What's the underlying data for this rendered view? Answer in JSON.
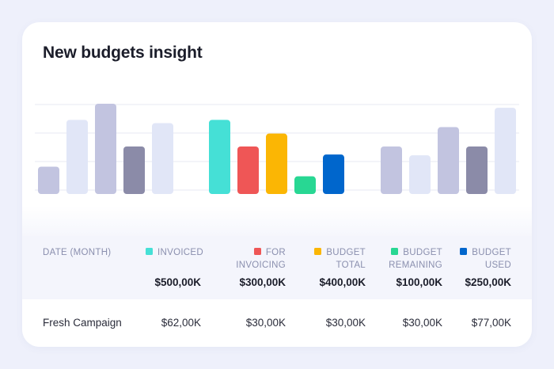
{
  "title": "New budgets insight",
  "colors": {
    "invoiced": "#45e0d6",
    "for_invoicing": "#ef5656",
    "budget_total": "#fbb604",
    "budget_remaining": "#28d793",
    "budget_used": "#0066cc",
    "neutral_light": "#e1e6f7",
    "neutral_mid": "#c2c4e0",
    "neutral_dark": "#8b8ba8"
  },
  "table": {
    "columns": [
      {
        "label": "DATE (MONTH)",
        "total": ""
      },
      {
        "label": "INVOICED",
        "total": "$500,00K",
        "swatch": "#45e0d6"
      },
      {
        "label_line1": "FOR",
        "label_line2": "INVOICING",
        "total": "$300,00K",
        "swatch": "#ef5656"
      },
      {
        "label_line1": "BUDGET",
        "label_line2": "TOTAL",
        "total": "$400,00K",
        "swatch": "#fbb604"
      },
      {
        "label_line1": "BUDGET",
        "label_line2": "REMAINING",
        "total": "$100,00K",
        "swatch": "#28d793"
      },
      {
        "label_line1": "BUDGET",
        "label_line2": "USED",
        "total": "$250,00K",
        "swatch": "#0066cc"
      }
    ],
    "rows": [
      {
        "name": "Fresh Campaign",
        "invoiced": "$62,00K",
        "for_invoicing": "$30,00K",
        "budget_total": "$30,00K",
        "budget_remaining": "$30,00K",
        "budget_used": "$77,00K"
      }
    ]
  },
  "chart_data": {
    "type": "bar",
    "title": "New budgets insight",
    "groups": [
      {
        "bars": [
          {
            "value": 30,
            "color": "#c2c4e0"
          },
          {
            "value": 88,
            "color": "#e1e6f7"
          },
          {
            "value": 108,
            "color": "#c2c4e0"
          },
          {
            "value": 55,
            "color": "#8b8ba8"
          },
          {
            "value": 84,
            "color": "#e1e6f7"
          }
        ]
      },
      {
        "bars": [
          {
            "value": 88,
            "color": "#45e0d6"
          },
          {
            "value": 55,
            "color": "#ef5656"
          },
          {
            "value": 71,
            "color": "#fbb604"
          },
          {
            "value": 18,
            "color": "#28d793"
          },
          {
            "value": 45,
            "color": "#0066cc"
          }
        ]
      },
      {
        "bars": [
          {
            "value": 55,
            "color": "#c2c4e0"
          },
          {
            "value": 44,
            "color": "#e1e6f7"
          },
          {
            "value": 79,
            "color": "#c2c4e0"
          },
          {
            "value": 55,
            "color": "#8b8ba8"
          },
          {
            "value": 103,
            "color": "#e1e6f7"
          }
        ]
      }
    ],
    "ylim": [
      0,
      108
    ],
    "grid": true,
    "legend": "table-below"
  }
}
